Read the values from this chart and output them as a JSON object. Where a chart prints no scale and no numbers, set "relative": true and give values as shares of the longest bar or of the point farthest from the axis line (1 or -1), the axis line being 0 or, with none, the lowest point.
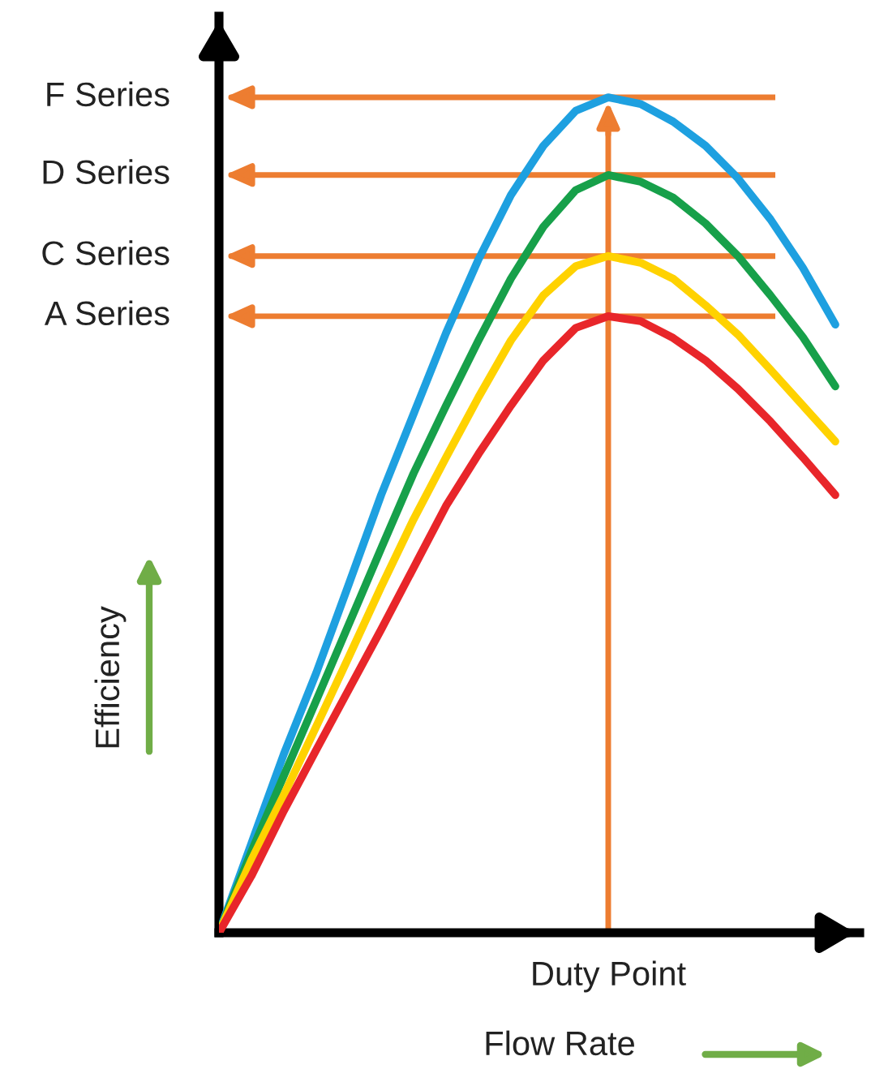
{
  "chart_data": {
    "type": "line",
    "relative": true,
    "xlabel": "Flow Rate",
    "ylabel": "Efficiency",
    "categories": [
      null,
      null,
      null,
      null,
      null,
      null,
      null,
      null,
      null,
      null,
      null,
      null,
      null,
      null,
      null,
      null,
      null,
      null,
      null,
      null
    ],
    "series": [
      {
        "color": "#1ea0e0",
        "values": [
          0,
          0.107,
          0.214,
          0.311,
          0.417,
          0.524,
          0.621,
          0.718,
          0.806,
          0.883,
          0.942,
          0.984,
          1,
          0.992,
          0.971,
          0.942,
          0.903,
          0.854,
          0.796,
          0.728
        ]
      },
      {
        "color": "#17a04a",
        "values": [
          0,
          0.097,
          0.188,
          0.278,
          0.369,
          0.46,
          0.55,
          0.631,
          0.709,
          0.783,
          0.845,
          0.889,
          0.907,
          0.899,
          0.88,
          0.849,
          0.81,
          0.763,
          0.713,
          0.654
        ]
      },
      {
        "color": "#ffd200",
        "values": [
          0,
          0.087,
          0.165,
          0.247,
          0.33,
          0.414,
          0.495,
          0.569,
          0.641,
          0.709,
          0.763,
          0.798,
          0.81,
          0.802,
          0.783,
          0.751,
          0.716,
          0.674,
          0.631,
          0.588
        ]
      },
      {
        "color": "#e8262a",
        "values": [
          0,
          0.068,
          0.146,
          0.219,
          0.291,
          0.363,
          0.437,
          0.511,
          0.573,
          0.631,
          0.685,
          0.724,
          0.738,
          0.732,
          0.712,
          0.685,
          0.651,
          0.612,
          0.569,
          0.524
        ]
      }
    ],
    "ref_lines": [
      {
        "axis": "y",
        "value": 1,
        "label": "F Series",
        "color": "#ed7d31"
      },
      {
        "axis": "y",
        "value": 0.907,
        "label": "D Series",
        "color": "#ed7d31"
      },
      {
        "axis": "y",
        "value": 0.81,
        "label": "C Series",
        "color": "#ed7d31"
      },
      {
        "axis": "y",
        "value": 0.738,
        "label": "A Series",
        "color": "#ed7d31"
      }
    ],
    "annotations": [
      "Duty Point"
    ],
    "legend": false,
    "marker": "none",
    "line_style": "solid"
  }
}
